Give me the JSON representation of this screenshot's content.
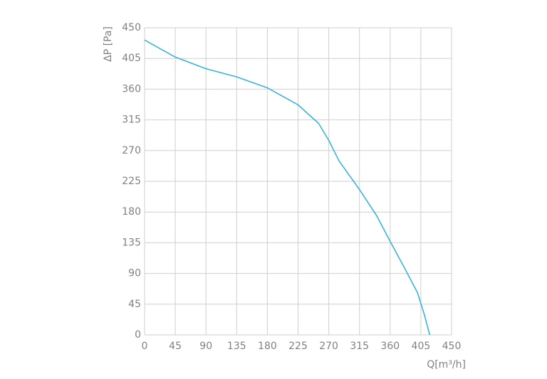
{
  "chart_data": {
    "type": "line",
    "x_label": "Q[m³/h]",
    "y_label": "ΔP [Pa]",
    "x": [
      0,
      45,
      90,
      135,
      180,
      225,
      255,
      270,
      285,
      315,
      340,
      360,
      380,
      400,
      410,
      418
    ],
    "series": [
      {
        "color": "#3bb3d6",
        "values": [
          432,
          407,
          390,
          378,
          362,
          337,
          310,
          285,
          255,
          213,
          175,
          137,
          100,
          62,
          30,
          0
        ]
      }
    ],
    "xlim": [
      0,
      450
    ],
    "xticks": [
      0,
      45,
      90,
      135,
      180,
      225,
      270,
      315,
      360,
      405,
      450
    ],
    "ylim": [
      0,
      450
    ],
    "yticks": [
      0,
      45,
      90,
      135,
      180,
      225,
      270,
      315,
      360,
      405,
      450
    ],
    "grid": true
  }
}
